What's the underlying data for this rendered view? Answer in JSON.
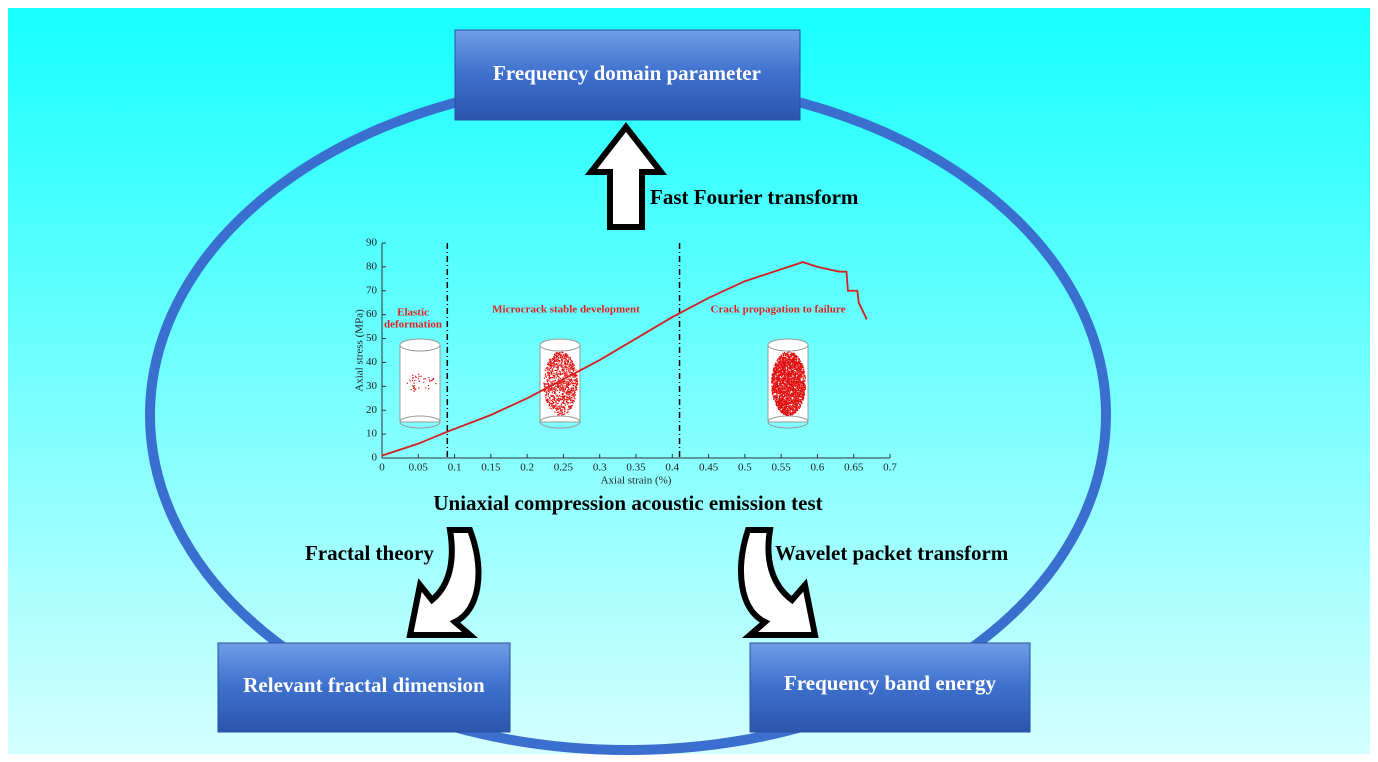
{
  "boxes": {
    "top": "Frequency domain parameter",
    "bottom_left": "Relevant fractal dimension",
    "bottom_right": "Frequency band energy"
  },
  "arrows": {
    "up": "Fast Fourier transform",
    "left": "Fractal theory",
    "right": "Wavelet packet transform"
  },
  "center_label": "Uniaxial compression acoustic emission test",
  "chart_data": {
    "type": "line",
    "x_label": "Axial strain (%)",
    "y_label": "Axial stress (MPa)",
    "x": [
      0,
      0.05,
      0.09,
      0.15,
      0.2,
      0.25,
      0.3,
      0.35,
      0.4,
      0.45,
      0.5,
      0.55,
      0.58,
      0.6,
      0.63,
      0.64,
      0.642,
      0.655,
      0.657,
      0.668
    ],
    "series": [
      {
        "color": "#d42020",
        "values": [
          1,
          6,
          11,
          18,
          25,
          33,
          41,
          50,
          59,
          67,
          74,
          79,
          82,
          80,
          78,
          78,
          70,
          70,
          65,
          58
        ]
      }
    ],
    "xlim": [
      0,
      0.7
    ],
    "xticks": [
      0,
      0.05,
      0.1,
      0.15,
      0.2,
      0.25,
      0.3,
      0.35,
      0.4,
      0.45,
      0.5,
      0.55,
      0.6,
      0.65,
      0.7
    ],
    "ylim": [
      0,
      90
    ],
    "yticks": [
      0,
      10,
      20,
      30,
      40,
      50,
      60,
      70,
      80,
      90
    ],
    "dividers": [
      0.09,
      0.41
    ],
    "annotations": [
      [
        "Elastic",
        "deformation"
      ],
      [
        "Microcrack stable development"
      ],
      [
        "Crack propagation to failure"
      ]
    ]
  }
}
